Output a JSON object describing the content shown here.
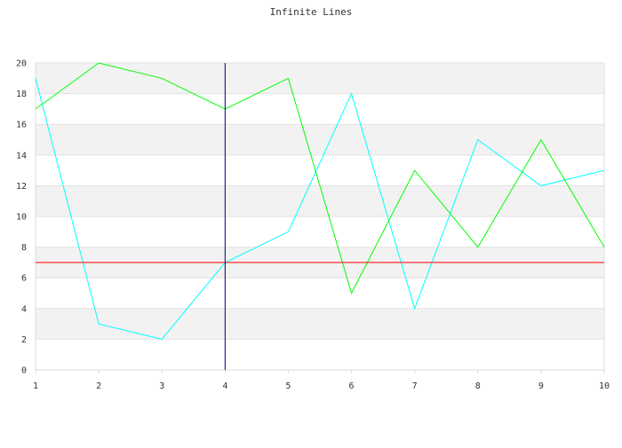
{
  "chart_data": {
    "type": "line",
    "title": "Infinite Lines",
    "x": [
      1,
      2,
      3,
      4,
      5,
      6,
      7,
      8,
      9,
      10
    ],
    "xlim": [
      1,
      10
    ],
    "ylim": [
      0,
      20
    ],
    "x_ticks": [
      "1",
      "2",
      "3",
      "4",
      "5",
      "6",
      "7",
      "8",
      "9",
      "10"
    ],
    "y_ticks": [
      "0",
      "2",
      "4",
      "6",
      "8",
      "10",
      "12",
      "14",
      "16",
      "18",
      "20"
    ],
    "grid": "horizontal bands",
    "series": [
      {
        "color": "#00ffff",
        "values": [
          19,
          3,
          2,
          7,
          9,
          18,
          4,
          15,
          12,
          13
        ]
      },
      {
        "color": "#00ff00",
        "values": [
          17,
          20,
          19,
          17,
          19,
          5,
          13,
          8,
          15,
          8
        ]
      }
    ],
    "reference_lines": [
      {
        "orientation": "horizontal",
        "value": 7,
        "color": "#ff0000"
      },
      {
        "orientation": "vertical",
        "value": 4,
        "color": "#000080"
      }
    ]
  }
}
